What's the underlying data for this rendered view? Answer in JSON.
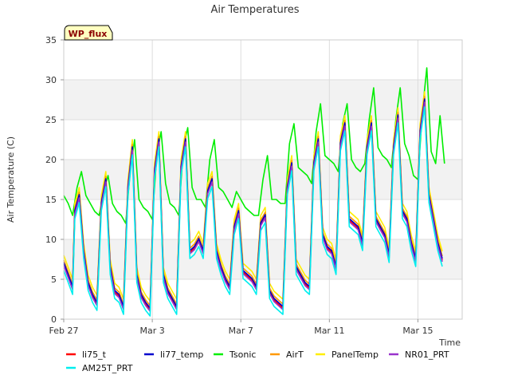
{
  "chart_data": {
    "type": "line",
    "title": "Air Temperatures",
    "xlabel": "Time",
    "ylabel": "Air Temperature (C)",
    "badge": "WP_flux",
    "xlim": [
      0,
      18
    ],
    "ylim": [
      0,
      35
    ],
    "yticks": [
      0,
      5,
      10,
      15,
      20,
      25,
      30,
      35
    ],
    "xticks": [
      {
        "value": 0,
        "label": "Feb 27"
      },
      {
        "value": 4,
        "label": "Mar 3"
      },
      {
        "value": 8,
        "label": "Mar 7"
      },
      {
        "value": 12,
        "label": "Mar 11"
      },
      {
        "value": 16,
        "label": "Mar 15"
      }
    ],
    "bands": [
      [
        5,
        10
      ],
      [
        15,
        20
      ],
      [
        25,
        30
      ]
    ],
    "grid": true,
    "legend_position": "bottom",
    "base_series": {
      "x": [
        0.0,
        0.2,
        0.4,
        0.5,
        0.7,
        0.9,
        1.1,
        1.3,
        1.5,
        1.7,
        1.9,
        2.1,
        2.3,
        2.5,
        2.7,
        2.9,
        3.1,
        3.3,
        3.5,
        3.7,
        3.9,
        4.1,
        4.3,
        4.5,
        4.7,
        4.9,
        5.1,
        5.3,
        5.5,
        5.7,
        5.9,
        6.1,
        6.3,
        6.5,
        6.7,
        6.9,
        7.1,
        7.3,
        7.5,
        7.7,
        7.9,
        8.1,
        8.3,
        8.5,
        8.7,
        8.9,
        9.1,
        9.3,
        9.5,
        9.7,
        9.9,
        10.1,
        10.3,
        10.5,
        10.7,
        10.9,
        11.1,
        11.3,
        11.5,
        11.7,
        11.9,
        12.1,
        12.3,
        12.5,
        12.7,
        12.9,
        13.1,
        13.3,
        13.5,
        13.7,
        13.9,
        14.1,
        14.3,
        14.5,
        14.7,
        14.9,
        15.1,
        15.3,
        15.5,
        15.7,
        15.9,
        16.1,
        16.3,
        16.5,
        16.7,
        16.9,
        17.1
      ],
      "y": [
        6.5,
        5.0,
        3.5,
        13.0,
        15.0,
        8.0,
        4.0,
        2.5,
        1.5,
        14.0,
        17.0,
        6.0,
        3.0,
        2.5,
        1.0,
        16.0,
        21.0,
        5.0,
        2.5,
        1.5,
        0.8,
        18.0,
        22.0,
        5.0,
        3.0,
        2.0,
        1.0,
        18.5,
        22.0,
        8.0,
        8.5,
        9.5,
        8.0,
        15.5,
        17.0,
        8.0,
        6.0,
        4.5,
        3.5,
        11.0,
        13.0,
        5.5,
        5.0,
        4.5,
        3.5,
        11.5,
        12.5,
        3.0,
        2.0,
        1.5,
        1.0,
        16.0,
        19.0,
        6.0,
        5.0,
        4.0,
        3.5,
        19.0,
        22.0,
        10.0,
        8.5,
        8.0,
        6.0,
        21.5,
        24.0,
        12.0,
        11.5,
        11.0,
        9.0,
        21.0,
        24.0,
        12.0,
        11.0,
        10.0,
        7.5,
        21.0,
        25.0,
        13.0,
        12.0,
        9.0,
        7.0,
        23.0,
        27.0,
        15.0,
        12.0,
        9.0,
        7.0
      ]
    },
    "series": [
      {
        "name": "li75_t",
        "color": "#ff0000",
        "offset": 0.4
      },
      {
        "name": "li77_temp",
        "color": "#0000cd",
        "offset": 0.6
      },
      {
        "name": "Tsonic",
        "color": "#00ee00",
        "offset": 0
      },
      {
        "name": "AirT",
        "color": "#ff9900",
        "offset": 0.9
      },
      {
        "name": "PanelTemp",
        "color": "#ffee00",
        "offset": 1.5
      },
      {
        "name": "NR01_PRT",
        "color": "#9933cc",
        "offset": 0.2
      },
      {
        "name": "AM25T_PRT",
        "color": "#00eeee",
        "offset": -0.4
      }
    ],
    "tsonic": {
      "x": [
        0.0,
        0.2,
        0.4,
        0.6,
        0.8,
        1.0,
        1.2,
        1.4,
        1.6,
        1.8,
        2.0,
        2.2,
        2.4,
        2.6,
        2.8,
        3.0,
        3.2,
        3.4,
        3.6,
        3.8,
        4.0,
        4.2,
        4.4,
        4.6,
        4.8,
        5.0,
        5.2,
        5.4,
        5.6,
        5.8,
        6.0,
        6.2,
        6.4,
        6.6,
        6.8,
        7.0,
        7.2,
        7.4,
        7.6,
        7.8,
        8.0,
        8.2,
        8.4,
        8.6,
        8.8,
        9.0,
        9.2,
        9.4,
        9.6,
        9.8,
        10.0,
        10.2,
        10.4,
        10.6,
        10.8,
        11.0,
        11.2,
        11.4,
        11.6,
        11.8,
        12.0,
        12.2,
        12.4,
        12.6,
        12.8,
        13.0,
        13.2,
        13.4,
        13.6,
        13.8,
        14.0,
        14.2,
        14.4,
        14.6,
        14.8,
        15.0,
        15.2,
        15.4,
        15.6,
        15.8,
        16.0,
        16.2,
        16.4,
        16.6,
        16.8,
        17.0,
        17.2
      ],
      "y": [
        15.5,
        14.5,
        13.0,
        16.5,
        18.5,
        15.5,
        14.5,
        13.5,
        13.0,
        16.0,
        18.0,
        14.5,
        13.5,
        13.0,
        12.0,
        18.5,
        22.5,
        15.0,
        14.0,
        13.5,
        12.5,
        20.5,
        23.5,
        17.0,
        14.5,
        14.0,
        13.0,
        21.5,
        24.0,
        16.5,
        15.0,
        15.0,
        14.0,
        20.0,
        22.5,
        16.5,
        16.0,
        15.0,
        14.0,
        16.0,
        15.0,
        14.0,
        13.5,
        13.0,
        13.0,
        17.5,
        20.5,
        15.0,
        15.0,
        14.5,
        14.5,
        22.0,
        24.5,
        19.0,
        18.5,
        18.0,
        17.0,
        23.5,
        27.0,
        20.5,
        20.0,
        19.5,
        18.5,
        24.5,
        27.0,
        20.0,
        19.0,
        18.5,
        19.5,
        25.0,
        29.0,
        21.5,
        20.5,
        20.0,
        19.0,
        25.0,
        29.0,
        22.0,
        20.5,
        18.0,
        17.5,
        26.0,
        31.5,
        21.0,
        19.5,
        25.5,
        19.5
      ]
    }
  }
}
